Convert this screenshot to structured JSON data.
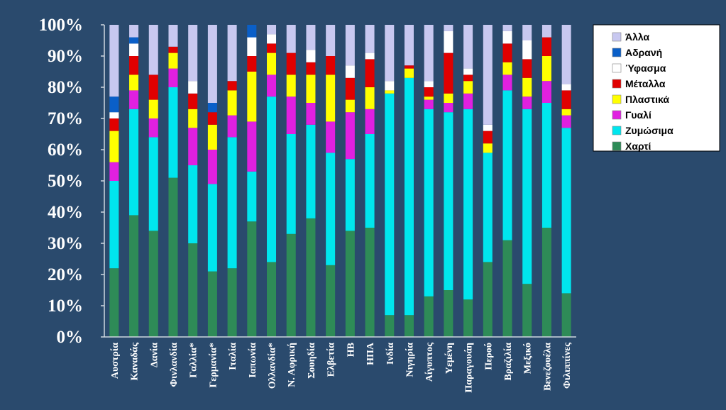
{
  "chart_data": {
    "type": "bar",
    "stacked": true,
    "percent": true,
    "ylim": [
      0,
      100
    ],
    "y_ticks": [
      "0%",
      "10%",
      "20%",
      "30%",
      "40%",
      "50%",
      "60%",
      "70%",
      "80%",
      "90%",
      "100%"
    ],
    "legend_position": "top-right",
    "categories": [
      "Αυστρία",
      "Καναδάς",
      "Δανία",
      "Φινλανδία",
      "Γαλλία*",
      "Γερμανία*",
      "Ιταλία",
      "Ιαπωνία",
      "Ολλανδία*",
      "Ν. Αφρική",
      "Σουηδία",
      "Ελβετία",
      "ΗΒ",
      "ΗΠΑ",
      "Ινδία",
      "Νιγηρία",
      "Αίγυπτος",
      "Υεμένη",
      "Παραγουάη",
      "Περού",
      "Βραζιλία",
      "Μεξικό",
      "Βενεζουέλα",
      "Φιλιππίνες"
    ],
    "series": [
      {
        "name": "Χαρτί",
        "color": "#2e8b57",
        "values": [
          22,
          39,
          34,
          51,
          30,
          21,
          22,
          37,
          24,
          33,
          38,
          23,
          34,
          35,
          7,
          7,
          13,
          15,
          12,
          24,
          31,
          17,
          35,
          14
        ]
      },
      {
        "name": "Ζυμώσιμα",
        "color": "#00e6ee",
        "values": [
          28,
          34,
          30,
          29,
          25,
          28,
          42,
          16,
          53,
          32,
          30,
          36,
          23,
          30,
          71,
          76,
          60,
          57,
          61,
          35,
          48,
          56,
          40,
          53
        ]
      },
      {
        "name": "Γυαλί",
        "color": "#e020e0",
        "values": [
          6,
          6,
          6,
          6,
          12,
          11,
          7,
          16,
          7,
          12,
          7,
          10,
          15,
          8,
          0,
          0,
          3,
          3,
          5,
          0,
          5,
          4,
          7,
          4
        ]
      },
      {
        "name": "Πλαστικά",
        "color": "#ffff00",
        "values": [
          10,
          5,
          6,
          5,
          6,
          8,
          8,
          16,
          7,
          7,
          9,
          15,
          4,
          7,
          1,
          3,
          1,
          3,
          4,
          3,
          4,
          6,
          8,
          2
        ]
      },
      {
        "name": "Μέταλλα",
        "color": "#e00000",
        "values": [
          4,
          6,
          8,
          2,
          5,
          4,
          3,
          5,
          3,
          7,
          4,
          6,
          7,
          9,
          0,
          1,
          3,
          13,
          2,
          4,
          6,
          6,
          6,
          6
        ]
      },
      {
        "name": "Ύφασμα",
        "color": "#ffffff",
        "values": [
          2,
          4,
          0,
          0,
          4,
          0,
          0,
          6,
          3,
          0,
          4,
          0,
          4,
          2,
          3,
          0,
          2,
          7,
          2,
          2,
          4,
          6,
          0,
          2
        ]
      },
      {
        "name": "Αδρανή",
        "color": "#0a5fc8",
        "values": [
          5,
          2,
          0,
          0,
          0,
          3,
          0,
          4,
          0,
          0,
          0,
          0,
          0,
          0,
          0,
          0,
          0,
          0,
          0,
          0,
          0,
          0,
          0,
          0
        ]
      },
      {
        "name": "Άλλα",
        "color": "#c8c8f0",
        "values": [
          23,
          4,
          16,
          7,
          18,
          25,
          18,
          0,
          3,
          9,
          8,
          10,
          13,
          9,
          18,
          13,
          18,
          2,
          14,
          32,
          2,
          5,
          4,
          19
        ]
      }
    ],
    "legend_order": [
      "Άλλα",
      "Αδρανή",
      "Ύφασμα",
      "Μέταλλα",
      "Πλαστικά",
      "Γυαλί",
      "Ζυμώσιμα",
      "Χαρτί"
    ]
  }
}
